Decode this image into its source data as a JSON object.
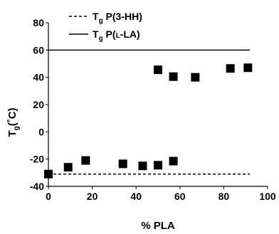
{
  "chart_data": {
    "type": "scatter",
    "title": "",
    "xlabel": "% PLA",
    "ylabel": {
      "main": "T",
      "sub": "g",
      "unit": "(˚C)"
    },
    "xlim": [
      0,
      100
    ],
    "ylim": [
      -40,
      80
    ],
    "x_ticks": [
      "0",
      "20",
      "40",
      "60",
      "80",
      "100"
    ],
    "y_ticks": [
      "-40",
      "-20",
      "0",
      "20",
      "40",
      "60",
      "80"
    ],
    "grid": false,
    "legend_placement": "top-left",
    "series": [
      {
        "marker": "square",
        "color": "#000000",
        "points": [
          {
            "x": 0,
            "y": -31
          },
          {
            "x": 9,
            "y": -26
          },
          {
            "x": 17,
            "y": -21
          },
          {
            "x": 34,
            "y": -23.5
          },
          {
            "x": 43,
            "y": -25
          },
          {
            "x": 50,
            "y": -24.5
          },
          {
            "x": 57,
            "y": -21.5
          },
          {
            "x": 50,
            "y": 45.5
          },
          {
            "x": 57,
            "y": 40.5
          },
          {
            "x": 67,
            "y": 40
          },
          {
            "x": 83,
            "y": 46.5
          },
          {
            "x": 91,
            "y": 47
          }
        ]
      }
    ],
    "reference_lines": [
      {
        "y": -31,
        "style": "dashed",
        "color": "#000000",
        "label": {
          "main": "T",
          "sub": "g",
          "text": " P(3-HH)"
        }
      },
      {
        "y": 60,
        "style": "solid",
        "color": "#000000",
        "label": {
          "main": "T",
          "sub": "g",
          "text_pre": " P(",
          "text_sc": "L",
          "text_post": "-LA)"
        }
      }
    ]
  }
}
